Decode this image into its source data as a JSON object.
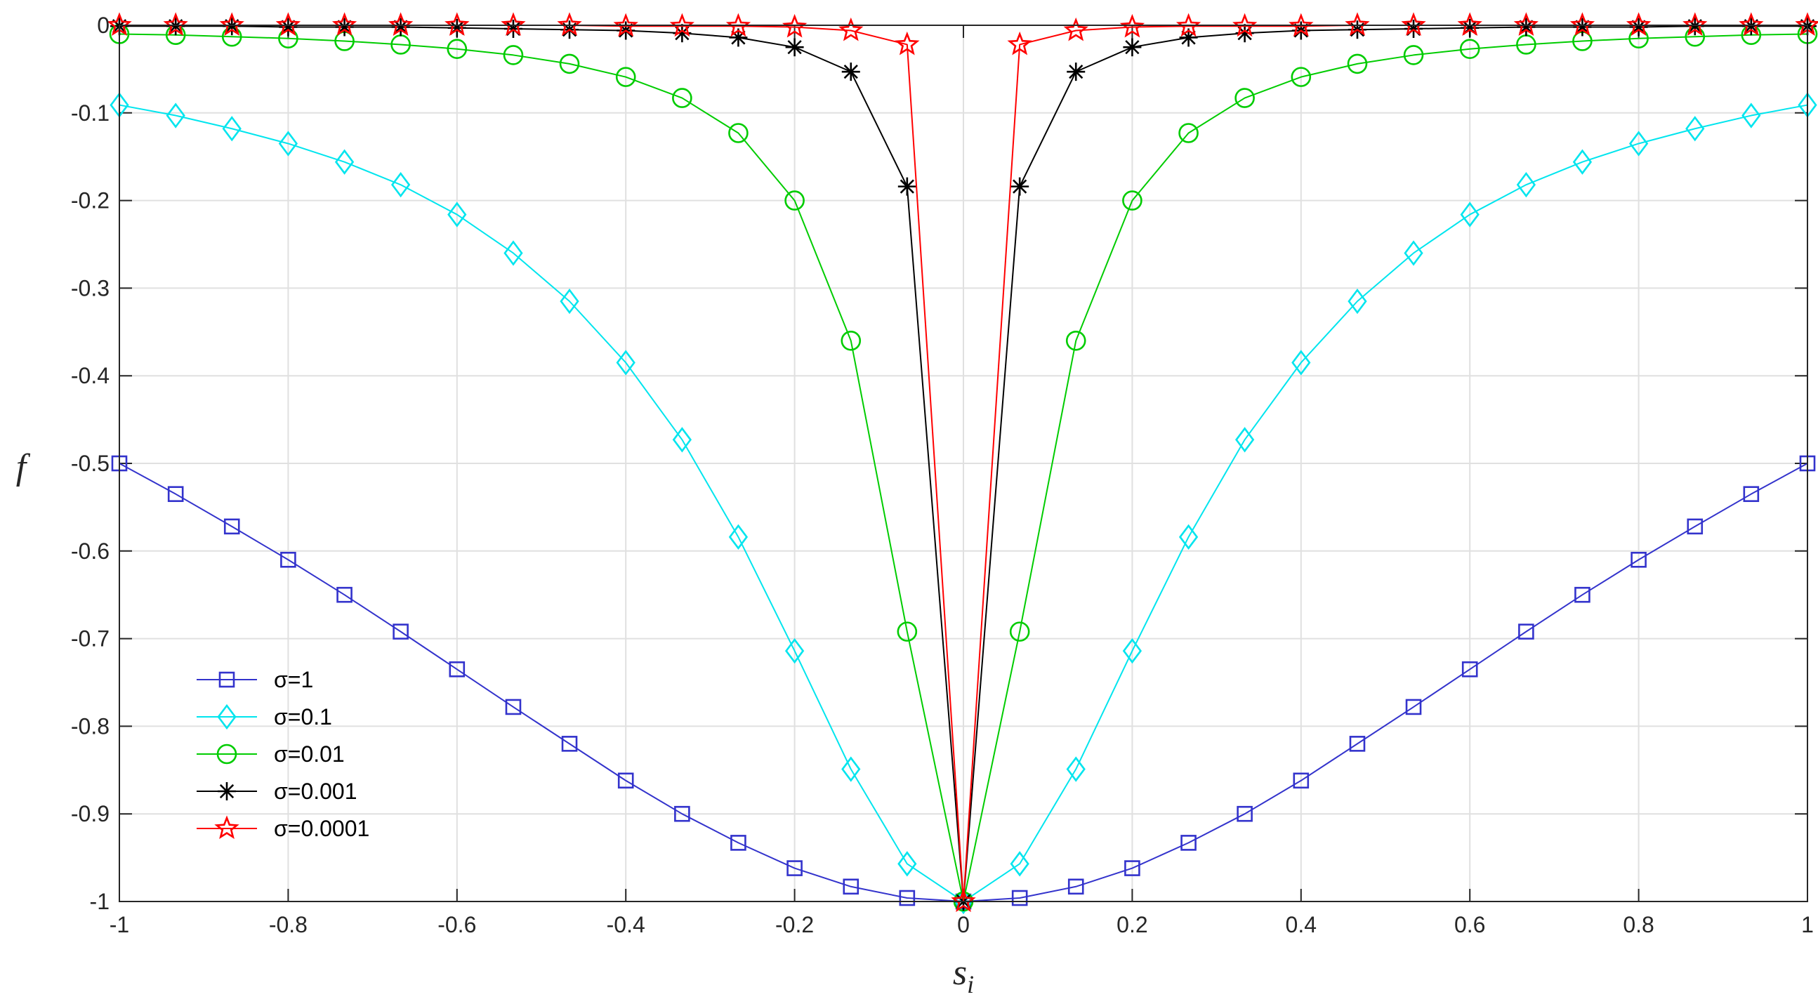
{
  "chart_data": {
    "type": "line",
    "title": "",
    "xlabel": "s",
    "xlabel_subscript": "i",
    "ylabel": "f",
    "xlim": [
      -1,
      1
    ],
    "ylim": [
      -1,
      0
    ],
    "grid": true,
    "legend_position": "bottom-left",
    "x_ticks": [
      -1,
      -0.8,
      -0.6,
      -0.4,
      -0.2,
      0,
      0.2,
      0.4,
      0.6,
      0.8,
      1
    ],
    "x_tick_labels": [
      "-1",
      "-0.8",
      "-0.6",
      "-0.4",
      "-0.2",
      "0",
      "0.2",
      "0.4",
      "0.6",
      "0.8",
      "1"
    ],
    "y_ticks": [
      0,
      -0.1,
      -0.2,
      -0.3,
      -0.4,
      -0.5,
      -0.6,
      -0.7,
      -0.8,
      -0.9,
      -1
    ],
    "y_tick_labels": [
      "0",
      "-0.1",
      "-0.2",
      "-0.3",
      "-0.4",
      "-0.5",
      "-0.6",
      "-0.7",
      "-0.8",
      "-0.9",
      "-1"
    ],
    "x": [
      -1,
      -0.9333,
      -0.8667,
      -0.8,
      -0.7333,
      -0.6667,
      -0.6,
      -0.5333,
      -0.4667,
      -0.4,
      -0.3333,
      -0.2667,
      -0.2,
      -0.1333,
      -0.0667,
      0,
      0.0667,
      0.1333,
      0.2,
      0.2667,
      0.3333,
      0.4,
      0.4667,
      0.5333,
      0.6,
      0.6667,
      0.7333,
      0.8,
      0.8667,
      0.9333,
      1
    ],
    "series": [
      {
        "name": "σ=1",
        "color": "#3333cc",
        "marker": "square",
        "values": [
          -0.5,
          -0.535,
          -0.572,
          -0.61,
          -0.65,
          -0.692,
          -0.735,
          -0.778,
          -0.82,
          -0.862,
          -0.9,
          -0.933,
          -0.962,
          -0.983,
          -0.996,
          -1,
          -0.996,
          -0.983,
          -0.962,
          -0.933,
          -0.9,
          -0.862,
          -0.82,
          -0.778,
          -0.735,
          -0.692,
          -0.65,
          -0.61,
          -0.572,
          -0.535,
          -0.5
        ]
      },
      {
        "name": "σ=0.1",
        "color": "#00e5ee",
        "marker": "diamond",
        "values": [
          -0.091,
          -0.103,
          -0.118,
          -0.135,
          -0.156,
          -0.182,
          -0.216,
          -0.26,
          -0.315,
          -0.385,
          -0.473,
          -0.584,
          -0.714,
          -0.849,
          -0.957,
          -1,
          -0.957,
          -0.849,
          -0.714,
          -0.584,
          -0.473,
          -0.385,
          -0.315,
          -0.26,
          -0.216,
          -0.182,
          -0.156,
          -0.135,
          -0.118,
          -0.103,
          -0.091
        ]
      },
      {
        "name": "σ=0.01",
        "color": "#00cc00",
        "marker": "circle",
        "values": [
          -0.01,
          -0.011,
          -0.013,
          -0.015,
          -0.018,
          -0.022,
          -0.027,
          -0.034,
          -0.044,
          -0.059,
          -0.083,
          -0.123,
          -0.2,
          -0.36,
          -0.692,
          -1,
          -0.692,
          -0.36,
          -0.2,
          -0.123,
          -0.083,
          -0.059,
          -0.044,
          -0.034,
          -0.027,
          -0.022,
          -0.018,
          -0.015,
          -0.013,
          -0.011,
          -0.01
        ]
      },
      {
        "name": "σ=0.001",
        "color": "#000000",
        "marker": "asterisk",
        "values": [
          -0.001,
          -0.001,
          -0.001,
          -0.002,
          -0.002,
          -0.002,
          -0.003,
          -0.004,
          -0.005,
          -0.006,
          -0.009,
          -0.014,
          -0.025,
          -0.053,
          -0.184,
          -1,
          -0.184,
          -0.053,
          -0.025,
          -0.014,
          -0.009,
          -0.006,
          -0.005,
          -0.004,
          -0.003,
          -0.002,
          -0.002,
          -0.002,
          -0.001,
          -0.001,
          -0.001
        ]
      },
      {
        "name": "σ=0.0001",
        "color": "#ff0000",
        "marker": "star",
        "values": [
          0,
          0,
          0,
          0,
          0,
          0,
          0,
          0,
          0,
          -0.001,
          -0.001,
          -0.001,
          -0.002,
          -0.006,
          -0.022,
          -1,
          -0.022,
          -0.006,
          -0.002,
          -0.001,
          -0.001,
          -0.001,
          0,
          0,
          0,
          0,
          0,
          0,
          0,
          0,
          0
        ]
      }
    ]
  }
}
